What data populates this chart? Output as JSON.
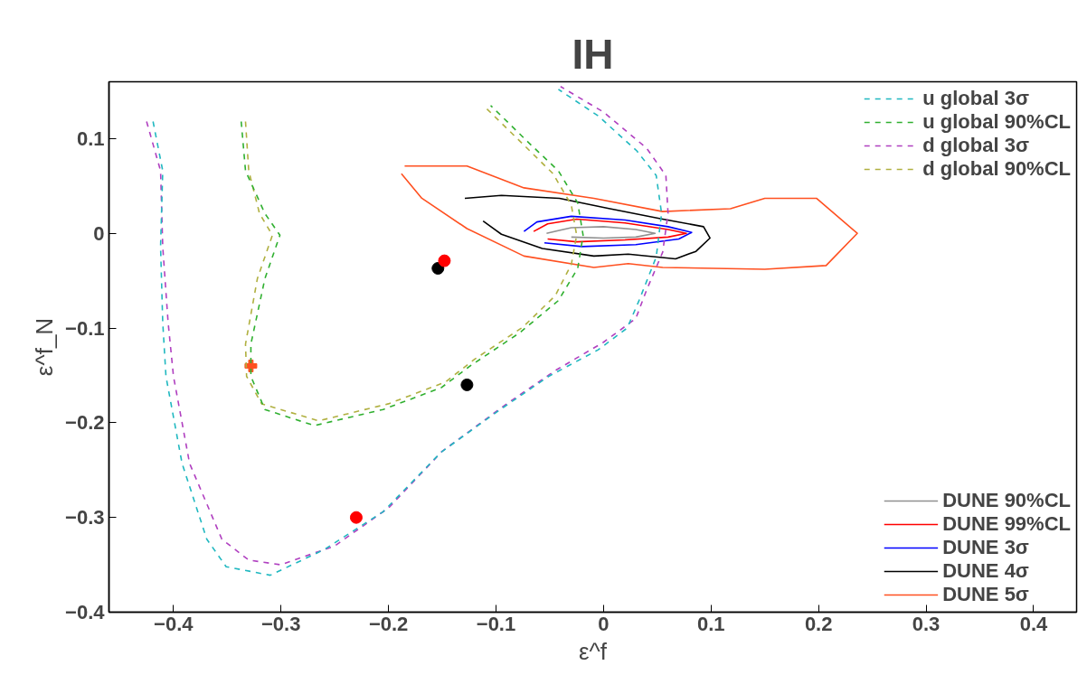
{
  "chart_data": {
    "type": "line",
    "title": "IH",
    "xlabel": "ε^f",
    "ylabel": "ε^f_N",
    "xlim": [
      -0.46,
      0.44
    ],
    "ylim": [
      -0.4,
      0.16
    ],
    "xticks": [
      -0.4,
      -0.3,
      -0.2,
      -0.1,
      0,
      0.1,
      0.2,
      0.3,
      0.4
    ],
    "yticks": [
      -0.4,
      -0.3,
      -0.2,
      -0.1,
      0,
      0.1
    ],
    "legend": "right",
    "series": [
      {
        "name": "u global 3σ",
        "color": "#20b8c0",
        "line_style": "dashed",
        "x": [
          -0.419,
          -0.41,
          -0.412,
          -0.41,
          -0.407,
          -0.392,
          -0.369,
          -0.351,
          -0.31,
          -0.26,
          -0.205,
          -0.151,
          -0.096,
          -0.051,
          -0.005,
          0.022,
          0.033,
          0.049,
          0.054,
          0.049,
          0.031,
          -0.005,
          -0.042
        ],
        "values": [
          0.118,
          0.066,
          -0.014,
          -0.094,
          -0.151,
          -0.243,
          -0.323,
          -0.352,
          -0.361,
          -0.334,
          -0.294,
          -0.231,
          -0.186,
          -0.151,
          -0.123,
          -0.1,
          -0.071,
          -0.025,
          0.021,
          0.061,
          0.087,
          0.124,
          0.152
        ]
      },
      {
        "name": "u global 90%CL",
        "color": "#30b030",
        "line_style": "dashed",
        "x": [
          -0.337,
          -0.333,
          -0.315,
          -0.301,
          -0.315,
          -0.328,
          -0.328,
          -0.315,
          -0.269,
          -0.205,
          -0.151,
          -0.124,
          -0.078,
          -0.042,
          -0.024,
          -0.019,
          -0.024,
          -0.042,
          -0.069,
          -0.105
        ],
        "values": [
          0.118,
          0.066,
          0.021,
          -0.002,
          -0.048,
          -0.117,
          -0.151,
          -0.186,
          -0.203,
          -0.186,
          -0.163,
          -0.14,
          -0.105,
          -0.071,
          -0.037,
          -0.002,
          0.032,
          0.066,
          0.095,
          0.135
        ]
      },
      {
        "name": "d global 3σ",
        "color": "#b040c0",
        "line_style": "dashed",
        "x": [
          -0.425,
          -0.412,
          -0.41,
          -0.405,
          -0.4,
          -0.385,
          -0.355,
          -0.33,
          -0.3,
          -0.25,
          -0.2,
          -0.15,
          -0.09,
          -0.045,
          0.0,
          0.03,
          0.04,
          0.055,
          0.06,
          0.058,
          0.04,
          0.0,
          -0.04
        ],
        "values": [
          0.118,
          0.066,
          -0.014,
          -0.094,
          -0.151,
          -0.243,
          -0.323,
          -0.345,
          -0.35,
          -0.33,
          -0.29,
          -0.23,
          -0.18,
          -0.145,
          -0.115,
          -0.09,
          -0.06,
          -0.02,
          0.021,
          0.061,
          0.09,
          0.128,
          0.155
        ]
      },
      {
        "name": "d global 90%CL",
        "color": "#b0b040",
        "line_style": "dashed",
        "x": [
          -0.333,
          -0.33,
          -0.32,
          -0.308,
          -0.322,
          -0.333,
          -0.332,
          -0.318,
          -0.265,
          -0.2,
          -0.147,
          -0.12,
          -0.075,
          -0.045,
          -0.03,
          -0.025,
          -0.03,
          -0.047,
          -0.073,
          -0.11
        ],
        "values": [
          0.118,
          0.066,
          0.021,
          -0.002,
          -0.048,
          -0.117,
          -0.151,
          -0.18,
          -0.198,
          -0.18,
          -0.157,
          -0.133,
          -0.099,
          -0.066,
          -0.033,
          -0.002,
          0.03,
          0.063,
          0.092,
          0.133
        ]
      },
      {
        "name": "DUNE 90%CL",
        "color": "#909090",
        "line_style": "solid",
        "x": [
          -0.053,
          -0.03,
          0.0,
          0.03,
          0.048,
          0.03,
          0.0,
          -0.03
        ],
        "values": [
          0.0,
          0.006,
          0.007,
          0.004,
          0.0,
          -0.004,
          -0.005,
          -0.004
        ]
      },
      {
        "name": "DUNE 99%CL",
        "color": "#ff0000",
        "line_style": "solid",
        "x": [
          -0.065,
          -0.052,
          -0.025,
          0.02,
          0.06,
          0.077,
          0.06,
          0.02,
          -0.025,
          -0.052
        ],
        "values": [
          0.002,
          0.01,
          0.015,
          0.011,
          0.004,
          0.0,
          -0.004,
          -0.007,
          -0.009,
          -0.006
        ]
      },
      {
        "name": "DUNE 3σ",
        "color": "#0000ff",
        "line_style": "solid",
        "x": [
          -0.074,
          -0.062,
          -0.03,
          0.02,
          0.06,
          0.082,
          0.07,
          0.03,
          -0.02,
          -0.055
        ],
        "values": [
          0.002,
          0.012,
          0.018,
          0.014,
          0.007,
          0.001,
          -0.006,
          -0.012,
          -0.014,
          -0.01
        ]
      },
      {
        "name": "DUNE 4σ",
        "color": "#000000",
        "line_style": "solid",
        "x": [
          -0.129,
          -0.095,
          -0.041,
          0.006,
          0.055,
          0.093,
          0.099,
          0.086,
          0.067,
          0.023,
          -0.009,
          -0.057,
          -0.095,
          -0.112
        ],
        "values": [
          0.037,
          0.04,
          0.037,
          0.026,
          0.015,
          0.007,
          -0.005,
          -0.019,
          -0.027,
          -0.022,
          -0.024,
          -0.016,
          -0.001,
          0.013
        ]
      },
      {
        "name": "DUNE 5σ",
        "color": "#ff5020",
        "line_style": "solid",
        "x": [
          -0.185,
          -0.127,
          -0.074,
          -0.009,
          0.055,
          0.118,
          0.15,
          0.198,
          0.236,
          0.207,
          0.15,
          0.055,
          0.023,
          -0.009,
          -0.074,
          -0.127,
          -0.169,
          -0.188
        ],
        "values": [
          0.071,
          0.071,
          0.048,
          0.037,
          0.023,
          0.026,
          0.037,
          0.037,
          0.0,
          -0.034,
          -0.038,
          -0.036,
          -0.032,
          -0.036,
          -0.024,
          0.005,
          0.037,
          0.063
        ]
      },
      {
        "type": "scatter",
        "marker": "circle",
        "color": "#ff0000",
        "x": [
          -0.148,
          -0.23
        ],
        "values": [
          -0.029,
          -0.3
        ]
      },
      {
        "type": "scatter",
        "marker": "circle",
        "color": "#000000",
        "x": [
          -0.154,
          -0.127
        ],
        "values": [
          -0.037,
          -0.16
        ]
      },
      {
        "type": "scatter",
        "marker": "cross",
        "color": "#ff5020",
        "x": [
          -0.328
        ],
        "values": [
          -0.14
        ]
      }
    ]
  }
}
